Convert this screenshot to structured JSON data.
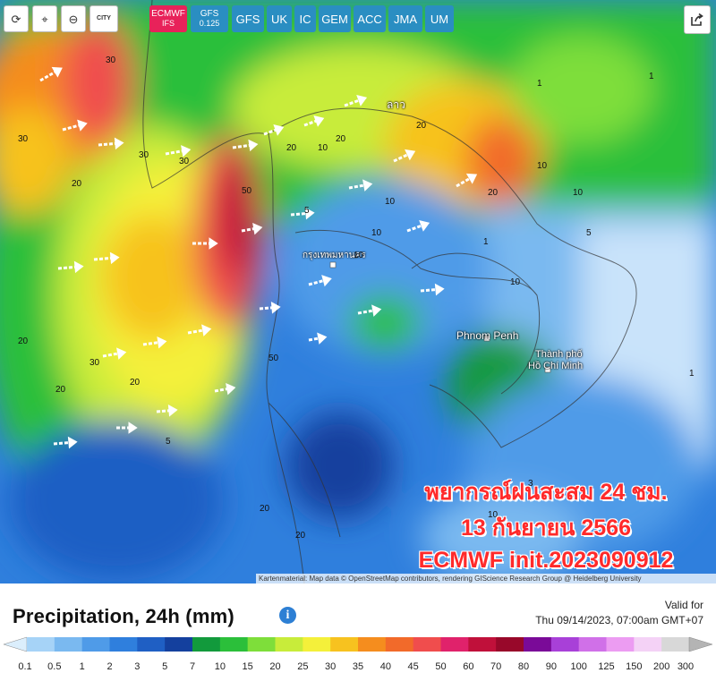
{
  "toolbar": {
    "buttons": [
      {
        "name": "refresh-icon",
        "type": "icon",
        "glyph": "⟳"
      },
      {
        "name": "location-pin-icon",
        "type": "icon",
        "glyph": "⌖"
      },
      {
        "name": "zoom-out-icon",
        "type": "icon",
        "glyph": "⊖"
      },
      {
        "name": "city-toggle",
        "type": "city",
        "label": "CITY"
      }
    ],
    "models": [
      {
        "line1": "ECMWF",
        "line2": "IFS",
        "active": true
      },
      {
        "line1": "GFS",
        "line2": "0.125",
        "active": false
      },
      {
        "line1": "GFS",
        "line2": "",
        "active": false
      },
      {
        "line1": "UK",
        "line2": "",
        "active": false
      },
      {
        "line1": "IC",
        "line2": "",
        "active": false
      },
      {
        "line1": "GEM",
        "line2": "",
        "active": false
      },
      {
        "line1": "ACC",
        "line2": "",
        "active": false
      },
      {
        "line1": "JMA",
        "line2": "",
        "active": false
      },
      {
        "line1": "UM",
        "line2": "",
        "active": false
      }
    ]
  },
  "map": {
    "place_labels": [
      {
        "text": "ลาว",
        "id": "laos"
      },
      {
        "text": "กรุงเทพมหานคร",
        "id": "bangkok"
      },
      {
        "text": "Phnom Penh",
        "id": "phnom-penh"
      },
      {
        "text": "Thành phố",
        "id": "hcmc-1"
      },
      {
        "text": "Hồ Chí Minh",
        "id": "hcmc-2"
      }
    ],
    "contour_labels": [
      "30",
      "30",
      "30",
      "20",
      "30",
      "50",
      "20",
      "30",
      "50",
      "20",
      "10",
      "20",
      "10",
      "10",
      "1",
      "20",
      "10",
      "10",
      "5",
      "10",
      "20",
      "20",
      "10",
      "5",
      "1",
      "1",
      "5",
      "3",
      "1",
      "20",
      "20",
      "10",
      "20"
    ],
    "overlay_lines": [
      "พยากรณ์ฝนสะสม 24 ชม.",
      "13 กันยายน 2566",
      "ECMWF init.2023090912"
    ],
    "attribution": "Kartenmaterial: Map data © OpenStreetMap contributors, rendering GIScience Research Group @ Heidelberg University"
  },
  "legend": {
    "title": "Precipitation, 24h (mm)",
    "info_glyph": "i",
    "valid_label": "Valid for",
    "valid_time": "Thu 09/14/2023, 07:00am GMT+07",
    "values": [
      "0.1",
      "0.5",
      "1",
      "2",
      "3",
      "5",
      "7",
      "10",
      "15",
      "20",
      "25",
      "30",
      "35",
      "40",
      "45",
      "50",
      "60",
      "70",
      "80",
      "90",
      "100",
      "125",
      "150",
      "200",
      "300"
    ],
    "colors": [
      "#a6d3f7",
      "#7ab9f0",
      "#4f9be8",
      "#2f7fdd",
      "#1f5fc4",
      "#14409e",
      "#129a3c",
      "#2bbf3a",
      "#7ede3a",
      "#c8ec3a",
      "#f4f03a",
      "#f7c21f",
      "#f58d1e",
      "#f26a2a",
      "#f04d4d",
      "#e0226b",
      "#c0103a",
      "#98082a",
      "#7a0a98",
      "#a840d8",
      "#d070e8",
      "#ec9cf2",
      "#f4d2f6",
      "#d8d8d8"
    ]
  }
}
